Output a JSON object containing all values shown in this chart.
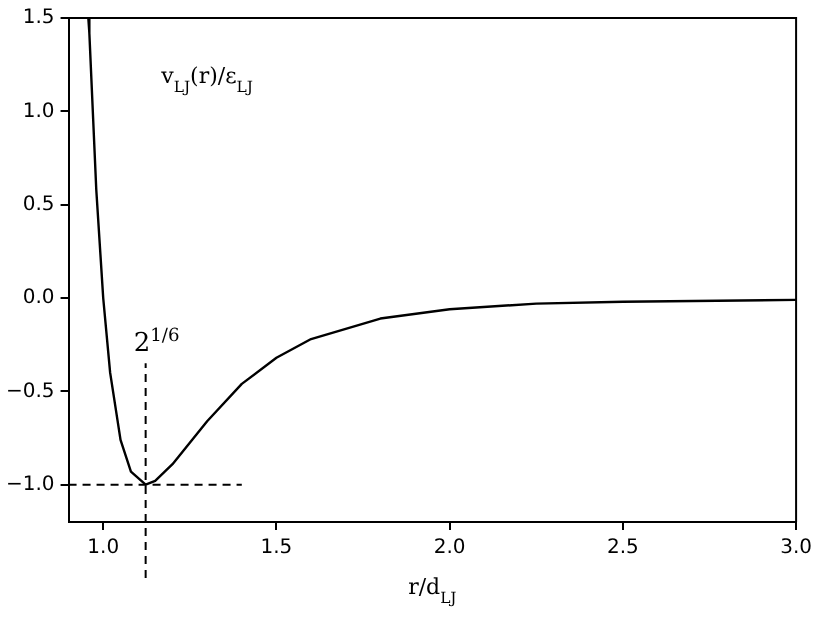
{
  "chart_data": {
    "type": "line",
    "xlabel": "r/d$_{LJ}$",
    "ylabel": "v$_{LJ}$(r)/ε$_{LJ}$",
    "series": [
      {
        "color": "#000000",
        "x": [
          0.957,
          0.96,
          0.98,
          1.0,
          1.02,
          1.05,
          1.08,
          1.1225,
          1.15,
          1.2,
          1.3,
          1.4,
          1.5,
          1.6,
          1.8,
          2.0,
          2.25,
          2.5,
          3.0
        ],
        "values": [
          1.5,
          1.42,
          0.58,
          0.0,
          -0.4,
          -0.76,
          -0.93,
          -1.0,
          -0.98,
          -0.89,
          -0.66,
          -0.46,
          -0.32,
          -0.22,
          -0.11,
          -0.06,
          -0.03,
          -0.02,
          -0.01
        ]
      }
    ],
    "xlim": [
      0.9,
      3.0
    ],
    "xticks": [
      {
        "value": 1,
        "label": "1.0"
      },
      1.5,
      {
        "value": 2,
        "label": "2.0"
      },
      2.5,
      {
        "value": 3,
        "label": "3.0"
      }
    ],
    "ylim": [
      -1.2,
      1.5
    ],
    "yticks": [
      {
        "value": -1,
        "label": "−1.0"
      },
      {
        "value": -0.5,
        "label": "−0.5"
      },
      {
        "value": 0,
        "label": "0.0"
      },
      0.5,
      {
        "value": 1,
        "label": "1.0"
      },
      1.5
    ],
    "ref_lines": [
      {
        "axis": "x",
        "value": 1.1225,
        "label": "2$^{1/6}$",
        "line_style": "dashed"
      },
      {
        "axis": "y",
        "value": -1.0,
        "line_style": "dashed"
      }
    ],
    "grid": false,
    "legend": false,
    "marker": "none",
    "line_style": "solid"
  }
}
